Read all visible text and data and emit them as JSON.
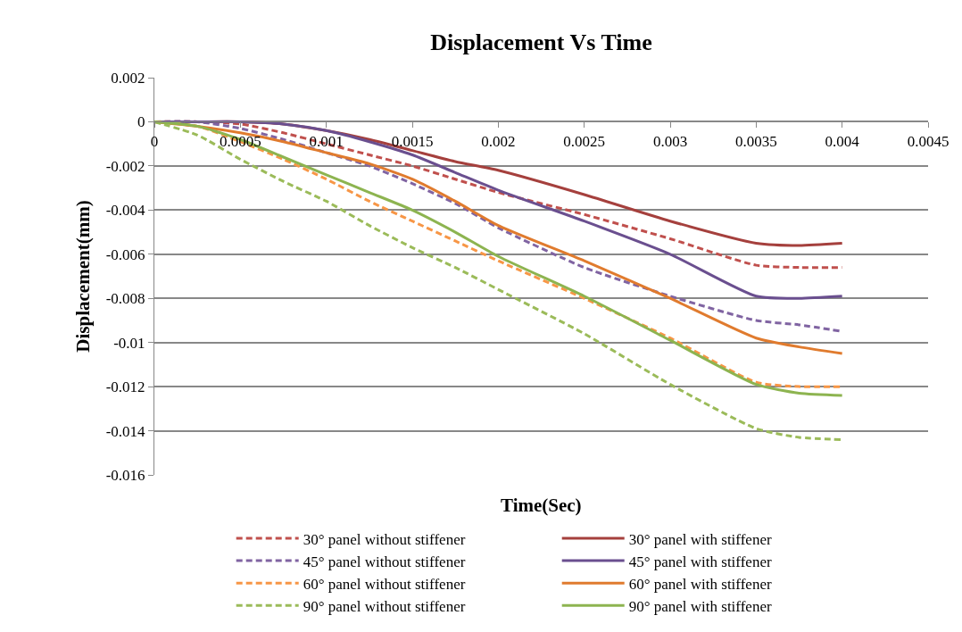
{
  "chart_data": {
    "type": "line",
    "title": "Displacement Vs Time",
    "xlabel": "Time(Sec)",
    "ylabel": "Displacement(mm)",
    "x": [
      0,
      0.00025,
      0.0005,
      0.00075,
      0.001,
      0.00125,
      0.0015,
      0.00175,
      0.002,
      0.0025,
      0.003,
      0.0035,
      0.00375,
      0.004
    ],
    "series": [
      {
        "name": "30° panel without stiffener",
        "color": "#c0504d",
        "line_style": "dashed",
        "values": [
          0,
          0,
          -0.0001,
          -0.0005,
          -0.001,
          -0.0015,
          -0.002,
          -0.0026,
          -0.0032,
          -0.0042,
          -0.0053,
          -0.0065,
          -0.0066,
          -0.0066
        ]
      },
      {
        "name": "30° panel with stiffener",
        "color": "#a5403d",
        "line_style": "solid",
        "values": [
          0,
          0,
          0,
          -0.0001,
          -0.0004,
          -0.0008,
          -0.0013,
          -0.0018,
          -0.0022,
          -0.0033,
          -0.0045,
          -0.0055,
          -0.0056,
          -0.0055
        ]
      },
      {
        "name": "45° panel without stiffener",
        "color": "#8064a2",
        "line_style": "dashed",
        "values": [
          0,
          0,
          -0.0003,
          -0.0008,
          -0.0014,
          -0.002,
          -0.0028,
          -0.0037,
          -0.0048,
          -0.0066,
          -0.0079,
          -0.009,
          -0.0092,
          -0.0095
        ]
      },
      {
        "name": "45° panel with stiffener",
        "color": "#6a4f8f",
        "line_style": "solid",
        "values": [
          0,
          0,
          0,
          -0.0001,
          -0.0004,
          -0.0009,
          -0.0015,
          -0.0023,
          -0.0031,
          -0.0045,
          -0.006,
          -0.0079,
          -0.008,
          -0.0079
        ]
      },
      {
        "name": "60° panel without stiffener",
        "color": "#f79646",
        "line_style": "dashed",
        "values": [
          0,
          -0.0002,
          -0.0009,
          -0.0017,
          -0.0026,
          -0.0036,
          -0.0045,
          -0.0054,
          -0.0063,
          -0.008,
          -0.0098,
          -0.0118,
          -0.012,
          -0.012
        ]
      },
      {
        "name": "60° panel with stiffener",
        "color": "#e07b2e",
        "line_style": "solid",
        "values": [
          0,
          -0.0002,
          -0.0005,
          -0.0009,
          -0.0014,
          -0.0019,
          -0.0026,
          -0.0036,
          -0.0047,
          -0.0063,
          -0.008,
          -0.0098,
          -0.0102,
          -0.0105
        ]
      },
      {
        "name": "90° panel without stiffener",
        "color": "#9bbb59",
        "line_style": "dashed",
        "values": [
          0,
          -0.0006,
          -0.0017,
          -0.0027,
          -0.0036,
          -0.0047,
          -0.0057,
          -0.0066,
          -0.0076,
          -0.0096,
          -0.0119,
          -0.0139,
          -0.0143,
          -0.0144
        ]
      },
      {
        "name": "90° panel with stiffener",
        "color": "#8db450",
        "line_style": "solid",
        "values": [
          0,
          -0.0002,
          -0.0008,
          -0.0016,
          -0.0024,
          -0.0032,
          -0.004,
          -0.005,
          -0.0061,
          -0.0079,
          -0.0099,
          -0.0119,
          -0.0123,
          -0.0124
        ]
      }
    ],
    "xlim": [
      0,
      0.0045
    ],
    "xticks": [
      0,
      0.0005,
      0.001,
      0.0015,
      0.002,
      0.0025,
      0.003,
      0.0035,
      0.004,
      0.0045
    ],
    "ylim": [
      -0.016,
      0.002
    ],
    "yticks": [
      0.002,
      0,
      -0.002,
      -0.004,
      -0.006,
      -0.008,
      -0.01,
      -0.012,
      -0.014,
      -0.016
    ],
    "grid": "y",
    "legend": "bottom",
    "marker": "none"
  }
}
